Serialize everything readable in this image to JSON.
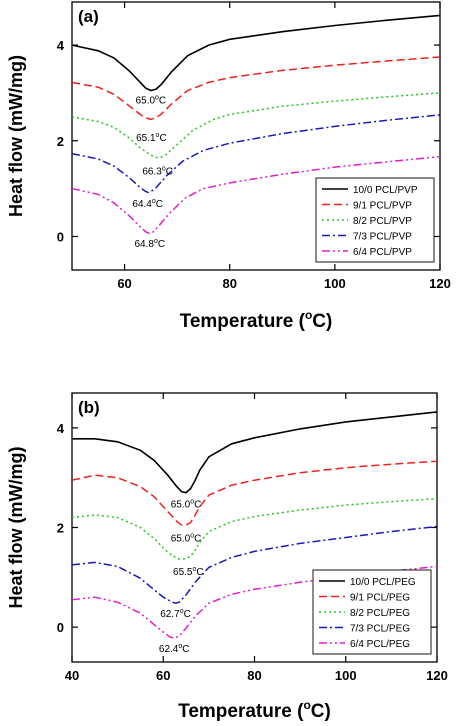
{
  "chart_data": [
    {
      "type": "line",
      "panel_label": "(a)",
      "xlabel": "Temperature (oC)",
      "xlabel_main": "Temperature (",
      "xlabel_sup": "o",
      "xlabel_end": "C)",
      "ylabel": "Heat flow (mW/mg)",
      "xlim": [
        50,
        120
      ],
      "ylim": [
        -0.7,
        4.9
      ],
      "xticks": [
        60,
        80,
        100,
        120
      ],
      "yticks": [
        0,
        2,
        4
      ],
      "legend_position": "bottom-right",
      "series": [
        {
          "name": "10/0 PCL/PVP",
          "color": "#000000",
          "dash": "solid",
          "x": [
            50,
            55,
            58,
            61,
            63,
            64,
            65,
            66,
            67,
            69,
            72,
            76,
            80,
            90,
            100,
            110,
            120
          ],
          "y": [
            4.0,
            3.88,
            3.73,
            3.45,
            3.22,
            3.1,
            3.05,
            3.08,
            3.18,
            3.45,
            3.78,
            4.0,
            4.12,
            4.28,
            4.41,
            4.52,
            4.62
          ]
        },
        {
          "name": "9/1 PCL/PVP",
          "color": "#e8231f",
          "dash": "dash",
          "x": [
            50,
            55,
            58,
            61,
            63,
            64,
            65,
            66,
            67,
            69,
            72,
            76,
            80,
            90,
            100,
            110,
            120
          ],
          "y": [
            3.22,
            3.12,
            2.97,
            2.72,
            2.55,
            2.48,
            2.45,
            2.48,
            2.56,
            2.78,
            3.05,
            3.22,
            3.32,
            3.47,
            3.58,
            3.67,
            3.75
          ]
        },
        {
          "name": "8/2 PCL/PVP",
          "color": "#22c81e",
          "dash": "dot",
          "x": [
            50,
            55,
            58,
            61,
            63,
            65,
            66,
            67,
            68,
            70,
            73,
            77,
            80,
            90,
            100,
            110,
            120
          ],
          "y": [
            2.5,
            2.4,
            2.28,
            2.05,
            1.85,
            1.7,
            1.65,
            1.66,
            1.72,
            1.92,
            2.22,
            2.45,
            2.55,
            2.72,
            2.83,
            2.92,
            3.0
          ]
        },
        {
          "name": "7/3 PCL/PVP",
          "color": "#1a1ab8",
          "dash": "dashdot",
          "x": [
            50,
            55,
            58,
            61,
            63,
            64,
            64.5,
            65,
            66,
            68,
            71,
            75,
            80,
            90,
            100,
            110,
            120
          ],
          "y": [
            1.73,
            1.62,
            1.47,
            1.22,
            1.02,
            0.94,
            0.92,
            0.94,
            1.02,
            1.27,
            1.57,
            1.8,
            1.95,
            2.15,
            2.3,
            2.43,
            2.54
          ]
        },
        {
          "name": "6/4 PCL/PVP",
          "color": "#e01ed0",
          "dash": "dashdotdot",
          "x": [
            50,
            55,
            58,
            61,
            63,
            64,
            64.8,
            65.5,
            66.5,
            68.5,
            71.5,
            75,
            80,
            90,
            100,
            110,
            120
          ],
          "y": [
            1.0,
            0.88,
            0.7,
            0.42,
            0.2,
            0.1,
            0.06,
            0.1,
            0.22,
            0.48,
            0.8,
            1.0,
            1.12,
            1.3,
            1.45,
            1.56,
            1.67
          ]
        }
      ],
      "annotations": [
        {
          "main": "65.0",
          "sup": "o",
          "end": "C",
          "x": 65.0,
          "y": 2.78
        },
        {
          "main": "65.1",
          "sup": "o",
          "end": "C",
          "x": 65.1,
          "y": 2.0
        },
        {
          "main": "66.3",
          "sup": "o",
          "end": "C",
          "x": 66.3,
          "y": 1.3
        },
        {
          "main": "64.4",
          "sup": "o",
          "end": "C",
          "x": 64.4,
          "y": 0.62
        },
        {
          "main": "64.8",
          "sup": "o",
          "end": "C",
          "x": 64.8,
          "y": -0.22
        }
      ]
    },
    {
      "type": "line",
      "panel_label": "(b)",
      "xlabel": "Temperature (oC)",
      "xlabel_main": "Temperature (",
      "xlabel_sup": "o",
      "xlabel_end": "C)",
      "ylabel": "Heat flow (mW/mg)",
      "xlim": [
        40,
        120
      ],
      "ylim": [
        -0.7,
        4.7
      ],
      "xticks": [
        40,
        60,
        80,
        100,
        120
      ],
      "yticks": [
        0,
        2,
        4
      ],
      "legend_position": "bottom-right",
      "series": [
        {
          "name": "10/0 PCL/PEG",
          "color": "#000000",
          "dash": "solid",
          "x": [
            40,
            45,
            50,
            55,
            58,
            61,
            63,
            64,
            65,
            66,
            67,
            68,
            70,
            75,
            80,
            90,
            100,
            110,
            120
          ],
          "y": [
            3.78,
            3.78,
            3.72,
            3.55,
            3.35,
            3.05,
            2.82,
            2.72,
            2.7,
            2.78,
            2.95,
            3.15,
            3.42,
            3.68,
            3.8,
            3.98,
            4.12,
            4.22,
            4.32
          ]
        },
        {
          "name": "9/1 PCL/PEG",
          "color": "#e8231f",
          "dash": "dash",
          "x": [
            40,
            45,
            50,
            55,
            58,
            61,
            63,
            64,
            65,
            66,
            67,
            68,
            70,
            75,
            80,
            90,
            100,
            110,
            120
          ],
          "y": [
            2.95,
            3.05,
            3.0,
            2.82,
            2.62,
            2.32,
            2.12,
            2.05,
            2.05,
            2.1,
            2.25,
            2.42,
            2.65,
            2.85,
            2.95,
            3.1,
            3.2,
            3.27,
            3.33
          ]
        },
        {
          "name": "8/2 PCL/PEG",
          "color": "#22c81e",
          "dash": "dot",
          "x": [
            40,
            45,
            50,
            55,
            58,
            61,
            63,
            64,
            65,
            66,
            67,
            68,
            70,
            75,
            80,
            90,
            100,
            110,
            120
          ],
          "y": [
            2.2,
            2.25,
            2.2,
            2.0,
            1.78,
            1.5,
            1.38,
            1.36,
            1.38,
            1.42,
            1.55,
            1.7,
            1.92,
            2.12,
            2.22,
            2.35,
            2.45,
            2.52,
            2.58
          ]
        },
        {
          "name": "7/3 PCL/PEG",
          "color": "#1a1ab8",
          "dash": "dashdot",
          "x": [
            40,
            45,
            50,
            55,
            58,
            60,
            62,
            62.7,
            63.5,
            65,
            67,
            70,
            75,
            80,
            90,
            100,
            110,
            120
          ],
          "y": [
            1.25,
            1.3,
            1.22,
            0.98,
            0.75,
            0.6,
            0.5,
            0.48,
            0.5,
            0.65,
            0.9,
            1.2,
            1.4,
            1.52,
            1.68,
            1.8,
            1.92,
            2.02
          ]
        },
        {
          "name": "6/4 PCL/PEG",
          "color": "#e01ed0",
          "dash": "dashdotdot",
          "x": [
            40,
            45,
            50,
            55,
            58,
            60,
            61.5,
            62.4,
            63.5,
            65,
            67,
            70,
            75,
            80,
            90,
            100,
            110,
            120
          ],
          "y": [
            0.55,
            0.6,
            0.5,
            0.28,
            0.05,
            -0.1,
            -0.2,
            -0.22,
            -0.18,
            -0.02,
            0.22,
            0.48,
            0.66,
            0.76,
            0.9,
            1.02,
            1.12,
            1.22
          ]
        }
      ],
      "annotations": [
        {
          "main": "65.0",
          "sup": "o",
          "end": "C",
          "x": 65.0,
          "y": 2.4
        },
        {
          "main": "65.0",
          "sup": "o",
          "end": "C",
          "x": 65.0,
          "y": 1.72
        },
        {
          "main": "65.5",
          "sup": "o",
          "end": "C",
          "x": 65.5,
          "y": 1.05
        },
        {
          "main": "62.7",
          "sup": "o",
          "end": "C",
          "x": 62.7,
          "y": 0.2
        },
        {
          "main": "62.4",
          "sup": "o",
          "end": "C",
          "x": 62.4,
          "y": -0.5
        }
      ]
    }
  ]
}
